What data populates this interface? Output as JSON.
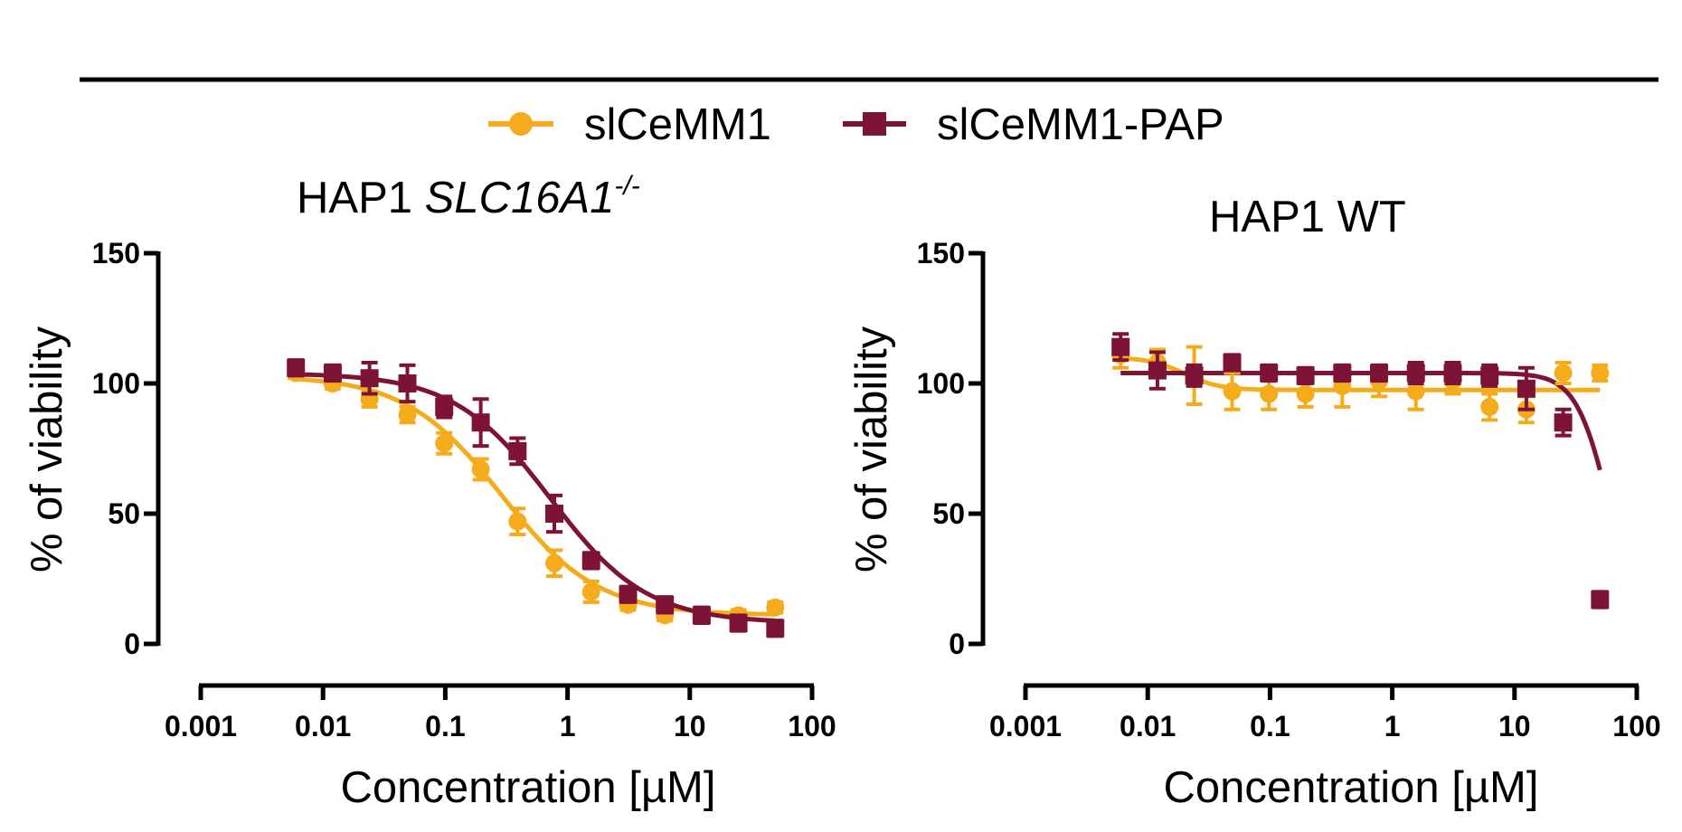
{
  "chart_data": [
    {
      "type": "line",
      "panel": "left",
      "title": {
        "prefix": "HAP1 ",
        "italic": "SLC16A1",
        "superscript": "-/-"
      },
      "xlabel": "Concentration [µM]",
      "ylabel": "% of viability",
      "xscale": "log",
      "xlim": [
        0.001,
        100
      ],
      "ylim": [
        0,
        150
      ],
      "xticks": [
        0.001,
        0.01,
        0.1,
        1,
        10,
        100
      ],
      "xtick_labels": [
        "0.001",
        "0.01",
        "0.1",
        "1",
        "10",
        "100"
      ],
      "yticks": [
        0,
        50,
        100,
        150
      ],
      "ytick_labels": [
        "0",
        "50",
        "100",
        "150"
      ],
      "x": [
        0.006,
        0.012,
        0.024,
        0.049,
        0.098,
        0.195,
        0.39,
        0.78,
        1.56,
        3.125,
        6.25,
        12.5,
        25,
        50
      ],
      "series": [
        {
          "name": "slCeMM1",
          "color": "#F4AC1C",
          "marker": "circle",
          "values": [
            104,
            100,
            94,
            88,
            77,
            67,
            47,
            31,
            20,
            15,
            11,
            11,
            11,
            14
          ],
          "errors": [
            2,
            2,
            3,
            3,
            4,
            4,
            5,
            5,
            4,
            2,
            2,
            2,
            2,
            2
          ],
          "fit": {
            "top": 103,
            "bottom": 11,
            "ec50": 0.29,
            "hill": 1.1
          }
        },
        {
          "name": "slCeMM1-PAP",
          "color": "#7D1335",
          "marker": "square",
          "values": [
            106,
            104,
            102,
            100,
            91,
            85,
            74,
            50,
            32,
            19,
            15,
            11,
            8,
            6
          ],
          "errors": [
            3,
            3,
            6,
            7,
            4,
            9,
            5,
            7,
            3,
            3,
            3,
            3,
            3,
            3
          ],
          "fit": {
            "top": 104,
            "bottom": 8,
            "ec50": 0.72,
            "hill": 1.1
          }
        }
      ]
    },
    {
      "type": "line",
      "panel": "right",
      "title": {
        "prefix": "HAP1 WT",
        "italic": "",
        "superscript": ""
      },
      "xlabel": "Concentration [µM]",
      "ylabel": "% of viability",
      "xscale": "log",
      "xlim": [
        0.001,
        100
      ],
      "ylim": [
        0,
        150
      ],
      "xticks": [
        0.001,
        0.01,
        0.1,
        1,
        10,
        100
      ],
      "xtick_labels": [
        "0.001",
        "0.01",
        "0.1",
        "1",
        "10",
        "100"
      ],
      "yticks": [
        0,
        50,
        100,
        150
      ],
      "ytick_labels": [
        "0",
        "50",
        "100",
        "150"
      ],
      "x": [
        0.006,
        0.012,
        0.024,
        0.049,
        0.098,
        0.195,
        0.39,
        0.78,
        1.56,
        3.125,
        6.25,
        12.5,
        25,
        50
      ],
      "series": [
        {
          "name": "slCeMM1",
          "color": "#F4AC1C",
          "marker": "circle",
          "values": [
            111,
            108,
            103,
            97,
            96,
            96,
            99,
            101,
            97,
            101,
            91,
            90,
            104,
            104
          ],
          "errors": [
            5,
            5,
            11,
            7,
            6,
            5,
            8,
            6,
            7,
            5,
            5,
            5,
            4,
            3
          ],
          "fit": {
            "kind": "flat",
            "top": 110,
            "bottom": 97.5,
            "ec50": 0.02,
            "hill": 3
          }
        },
        {
          "name": "slCeMM1-PAP",
          "color": "#7D1335",
          "marker": "square",
          "values": [
            114,
            105,
            103,
            108,
            104,
            103,
            104,
            104,
            104,
            104,
            103,
            98,
            85,
            17
          ],
          "errors": [
            5,
            7,
            4,
            3,
            3,
            3,
            3,
            3,
            4,
            4,
            4,
            8,
            5,
            3
          ],
          "fit": {
            "kind": "drop",
            "top": 104,
            "bottom": 0,
            "ec50": 60,
            "hill": 3.2
          }
        }
      ]
    }
  ],
  "legend": [
    {
      "name": "slCeMM1",
      "color": "#F4AC1C",
      "marker": "circle"
    },
    {
      "name": "slCeMM1-PAP",
      "color": "#7D1335",
      "marker": "square"
    }
  ]
}
